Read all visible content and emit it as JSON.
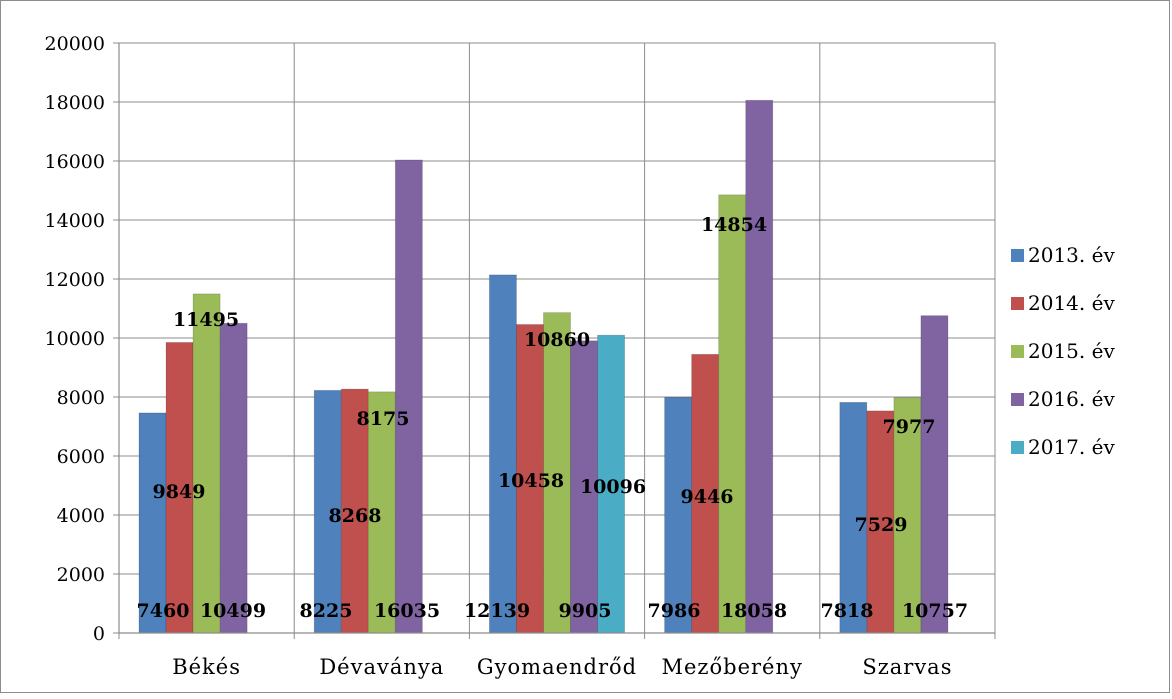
{
  "chart_data": {
    "type": "bar",
    "title": "",
    "xlabel": "",
    "ylabel": "",
    "ylim": [
      0,
      20000
    ],
    "yticks": [
      0,
      2000,
      4000,
      6000,
      8000,
      10000,
      12000,
      14000,
      16000,
      18000,
      20000
    ],
    "grid": true,
    "legend_position": "right",
    "categories": [
      "Békés",
      "Dévaványa",
      "Gyomaendrőd",
      "Mezőberény",
      "Szarvas"
    ],
    "series": [
      {
        "name": "2013. év",
        "color": "#4f81bd",
        "values": [
          7460,
          8225,
          12139,
          7986,
          7818
        ]
      },
      {
        "name": "2014. év",
        "color": "#c0504d",
        "values": [
          9849,
          8268,
          10458,
          9446,
          7529
        ]
      },
      {
        "name": "2015. év",
        "color": "#9bbb59",
        "values": [
          11495,
          8175,
          10860,
          14854,
          7977
        ]
      },
      {
        "name": "2016. év",
        "color": "#8064a2",
        "values": [
          10499,
          16035,
          9905,
          18058,
          10757
        ]
      },
      {
        "name": "2017. év",
        "color": "#4bacc6",
        "values": [
          null,
          null,
          10096,
          null,
          null
        ]
      }
    ]
  }
}
